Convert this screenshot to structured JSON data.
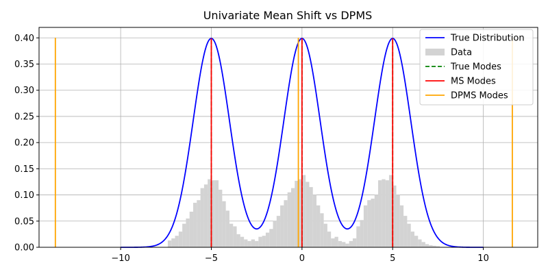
{
  "chart_data": {
    "type": "line",
    "title": "Univariate Mean Shift vs DPMS",
    "xlabel": "",
    "ylabel": "",
    "xlim": [
      -14.5,
      13.0
    ],
    "ylim": [
      0,
      0.42
    ],
    "grid": true,
    "legend_position": "top-right",
    "x_ticks": [
      -10,
      -5,
      0,
      5,
      10
    ],
    "x_tick_labels": [
      "−10",
      "−5",
      "0",
      "5",
      "10"
    ],
    "y_ticks": [
      0.0,
      0.05,
      0.1,
      0.15,
      0.2,
      0.25,
      0.3,
      0.35,
      0.4
    ],
    "y_tick_labels": [
      "0.00",
      "0.05",
      "0.10",
      "0.15",
      "0.20",
      "0.25",
      "0.30",
      "0.35",
      "0.40"
    ],
    "series": [
      {
        "name": "True Distribution",
        "style": "line",
        "color": "#0000ff",
        "description_of_values": "mixture of three unit-variance Gaussians",
        "components": [
          {
            "mean": -5,
            "std": 1,
            "peak": 0.399
          },
          {
            "mean": 0,
            "std": 1,
            "peak": 0.399
          },
          {
            "mean": 5,
            "std": 1,
            "peak": 0.399
          }
        ],
        "x_range": [
          -10,
          10
        ]
      },
      {
        "name": "Data",
        "style": "histogram",
        "color": "#d3d3d3",
        "bin_width": 0.2,
        "bins_start": [
          -7.4,
          -7.2,
          -7.0,
          -6.8,
          -6.6,
          -6.4,
          -6.2,
          -6.0,
          -5.8,
          -5.6,
          -5.4,
          -5.2,
          -5.0,
          -4.8,
          -4.6,
          -4.4,
          -4.2,
          -4.0,
          -3.8,
          -3.6,
          -3.4,
          -3.2,
          -3.0,
          -2.8,
          -2.6,
          -2.4,
          -2.2,
          -2.0,
          -1.8,
          -1.6,
          -1.4,
          -1.2,
          -1.0,
          -0.8,
          -0.6,
          -0.4,
          -0.2,
          0.0,
          0.2,
          0.4,
          0.6,
          0.8,
          1.0,
          1.2,
          1.4,
          1.6,
          1.8,
          2.0,
          2.2,
          2.4,
          2.6,
          2.8,
          3.0,
          3.2,
          3.4,
          3.6,
          3.8,
          4.0,
          4.2,
          4.4,
          4.6,
          4.8,
          5.0,
          5.2,
          5.4,
          5.6,
          5.8,
          6.0,
          6.2,
          6.4,
          6.6,
          6.8,
          7.0,
          7.2,
          7.4
        ],
        "heights": [
          0.013,
          0.017,
          0.022,
          0.03,
          0.045,
          0.055,
          0.068,
          0.085,
          0.09,
          0.113,
          0.12,
          0.13,
          0.128,
          0.128,
          0.11,
          0.088,
          0.07,
          0.045,
          0.04,
          0.025,
          0.02,
          0.015,
          0.012,
          0.015,
          0.012,
          0.02,
          0.022,
          0.028,
          0.035,
          0.05,
          0.06,
          0.08,
          0.09,
          0.105,
          0.113,
          0.127,
          0.13,
          0.138,
          0.125,
          0.115,
          0.1,
          0.08,
          0.065,
          0.045,
          0.03,
          0.017,
          0.02,
          0.012,
          0.01,
          0.007,
          0.012,
          0.017,
          0.04,
          0.052,
          0.08,
          0.09,
          0.093,
          0.1,
          0.128,
          0.13,
          0.128,
          0.138,
          0.118,
          0.1,
          0.08,
          0.06,
          0.045,
          0.03,
          0.022,
          0.015,
          0.01,
          0.006,
          0.004,
          0.003,
          0.002
        ]
      },
      {
        "name": "True Modes",
        "style": "dashed-vline",
        "color": "#008000",
        "x": [
          -5,
          0,
          5
        ],
        "y_top": 0.399
      },
      {
        "name": "MS Modes",
        "style": "vline",
        "color": "#ff0000",
        "x": [
          -5.0,
          0.0,
          5.0
        ],
        "y_top": 0.399
      },
      {
        "name": "DPMS Modes",
        "style": "vline",
        "color": "#ffa500",
        "x": [
          -13.6,
          -0.2,
          11.6
        ],
        "y_top": 0.4
      }
    ]
  }
}
